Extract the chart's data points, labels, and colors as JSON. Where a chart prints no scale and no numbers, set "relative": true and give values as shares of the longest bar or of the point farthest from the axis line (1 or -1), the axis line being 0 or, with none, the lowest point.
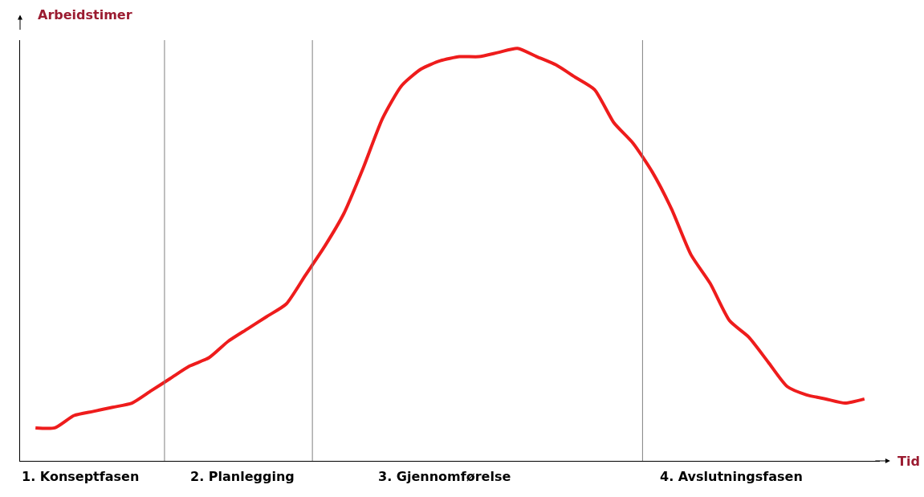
{
  "chart_data": {
    "type": "line",
    "relative": true,
    "ylabel": "Arbeidstimer",
    "xlabel": "Tid",
    "categories": [
      null,
      null,
      null,
      null,
      null,
      null,
      null,
      null,
      null,
      null,
      null,
      null,
      null,
      null,
      null,
      null,
      null,
      null,
      null,
      null,
      null,
      null,
      null,
      null,
      null,
      null,
      null,
      null,
      null,
      null,
      null,
      null,
      null,
      null,
      null,
      null,
      null,
      null,
      null,
      null,
      null,
      null,
      null,
      null
    ],
    "series": [
      {
        "color": "#ee1c1c",
        "values": [
          0.08,
          0.08,
          0.11,
          0.12,
          0.13,
          0.14,
          0.17,
          0.2,
          0.23,
          0.25,
          0.29,
          0.32,
          0.35,
          0.38,
          0.45,
          0.52,
          0.6,
          0.71,
          0.83,
          0.91,
          0.95,
          0.97,
          0.98,
          0.98,
          0.99,
          1,
          0.98,
          0.96,
          0.93,
          0.9,
          0.82,
          0.77,
          0.7,
          0.61,
          0.5,
          0.43,
          0.34,
          0.3,
          0.24,
          0.18,
          0.16,
          0.15,
          0.14,
          0.15
        ]
      }
    ],
    "annotations": [
      "1. Konseptfasen",
      "2. Planlegging",
      "3. Gjennomførelse",
      "4. Avslutningsfasen"
    ],
    "marker": "none",
    "line_style": "solid"
  }
}
